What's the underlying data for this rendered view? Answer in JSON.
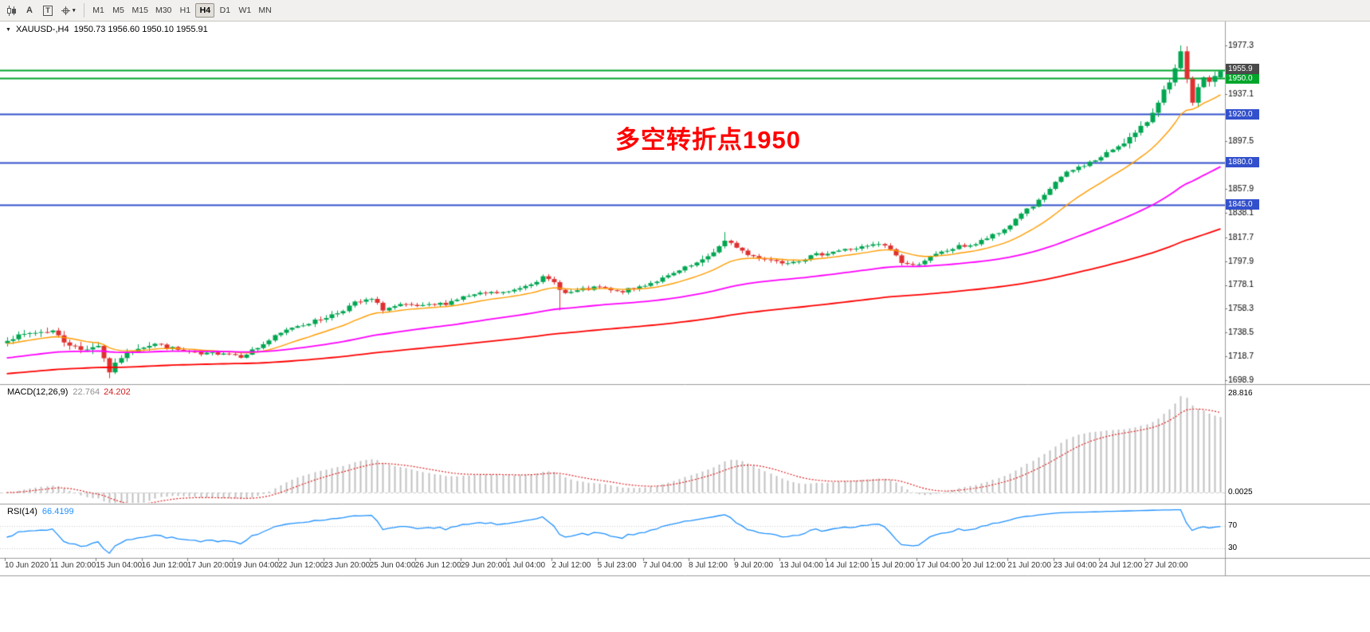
{
  "toolbar": {
    "text_tool_label": "A",
    "textbox_tool_label": "T",
    "timeframes": [
      {
        "label": "M1",
        "active": false
      },
      {
        "label": "M5",
        "active": false
      },
      {
        "label": "M15",
        "active": false
      },
      {
        "label": "M30",
        "active": false
      },
      {
        "label": "H1",
        "active": false
      },
      {
        "label": "H4",
        "active": true
      },
      {
        "label": "D1",
        "active": false
      },
      {
        "label": "W1",
        "active": false
      },
      {
        "label": "MN",
        "active": false
      }
    ]
  },
  "icons": {
    "collapse_triangle": "▼",
    "dropdown_caret": "▾"
  },
  "chart_data": {
    "type": "candlestick",
    "symbol": "XAUUSD-",
    "timeframe": "H4",
    "title_symbol": "XAUUSD-,H4",
    "title_ohlc": "1950.73 1956.60 1950.10 1955.91",
    "ohlc_current": {
      "open": 1950.73,
      "high": 1956.6,
      "low": 1950.1,
      "close": 1955.91
    },
    "annotation": {
      "text": "多空转折点1950",
      "color": "#FF0000"
    },
    "candle_count": 214,
    "candle_colors": {
      "up": "#00A651",
      "down": "#E03030"
    },
    "price_path": [
      [
        0,
        1733
      ],
      [
        4,
        1738
      ],
      [
        8,
        1740
      ],
      [
        10,
        1731
      ],
      [
        13,
        1724
      ],
      [
        16,
        1728
      ],
      [
        18,
        1706
      ],
      [
        20,
        1718
      ],
      [
        23,
        1726
      ],
      [
        26,
        1729
      ],
      [
        30,
        1724
      ],
      [
        34,
        1720
      ],
      [
        38,
        1722
      ],
      [
        41,
        1719
      ],
      [
        44,
        1726
      ],
      [
        47,
        1735
      ],
      [
        50,
        1743
      ],
      [
        54,
        1748
      ],
      [
        58,
        1755
      ],
      [
        61,
        1763
      ],
      [
        64,
        1766
      ],
      [
        66,
        1758
      ],
      [
        69,
        1761
      ],
      [
        73,
        1760
      ],
      [
        77,
        1763
      ],
      [
        80,
        1768
      ],
      [
        84,
        1771
      ],
      [
        88,
        1772
      ],
      [
        91,
        1778
      ],
      [
        94,
        1784
      ],
      [
        96,
        1780
      ],
      [
        98,
        1771
      ],
      [
        101,
        1774
      ],
      [
        104,
        1776
      ],
      [
        107,
        1772
      ],
      [
        110,
        1775
      ],
      [
        113,
        1780
      ],
      [
        116,
        1785
      ],
      [
        119,
        1792
      ],
      [
        122,
        1798
      ],
      [
        124,
        1806
      ],
      [
        126,
        1814
      ],
      [
        128,
        1810
      ],
      [
        130,
        1803
      ],
      [
        133,
        1800
      ],
      [
        136,
        1797
      ],
      [
        139,
        1799
      ],
      [
        142,
        1803
      ],
      [
        145,
        1806
      ],
      [
        148,
        1808
      ],
      [
        151,
        1810
      ],
      [
        153,
        1812
      ],
      [
        155,
        1808
      ],
      [
        157,
        1797
      ],
      [
        159,
        1794
      ],
      [
        161,
        1799
      ],
      [
        164,
        1805
      ],
      [
        167,
        1810
      ],
      [
        170,
        1812
      ],
      [
        172,
        1817
      ],
      [
        174,
        1821
      ],
      [
        176,
        1828
      ],
      [
        178,
        1838
      ],
      [
        180,
        1843
      ],
      [
        182,
        1852
      ],
      [
        184,
        1864
      ],
      [
        186,
        1871
      ],
      [
        188,
        1876
      ],
      [
        190,
        1880
      ],
      [
        192,
        1884
      ],
      [
        194,
        1891
      ],
      [
        196,
        1897
      ],
      [
        198,
        1904
      ],
      [
        200,
        1914
      ],
      [
        201,
        1922
      ],
      [
        202,
        1931
      ],
      [
        203,
        1940
      ],
      [
        204,
        1946
      ],
      [
        205,
        1958
      ],
      [
        206,
        1972
      ],
      [
        207,
        1949
      ],
      [
        208,
        1930
      ],
      [
        209,
        1942
      ],
      [
        210,
        1951
      ],
      [
        211,
        1947
      ],
      [
        212,
        1952
      ],
      [
        213,
        1955.91
      ]
    ],
    "special_wicks": {
      "18": {
        "low": 1700.5
      },
      "97": {
        "low": 1757
      },
      "126": {
        "high": 1822
      },
      "206": {
        "high": 1977.3
      }
    },
    "y_ticks": [
      1977.3,
      1937.1,
      1897.5,
      1857.9,
      1838.1,
      1817.7,
      1797.9,
      1778.1,
      1758.3,
      1738.5,
      1718.7,
      1698.9
    ],
    "horizontal_lines": [
      {
        "price": 1956.6,
        "color": "#00A62C",
        "tag": null
      },
      {
        "price": 1950.0,
        "color": "#00A62C",
        "tag": "1950.0"
      },
      {
        "price": 1920.0,
        "color": "#3350CC",
        "tag": "1920.0"
      },
      {
        "price": 1880.0,
        "color": "#3350CC",
        "tag": "1880.0"
      },
      {
        "price": 1845.0,
        "color": "#3350CC",
        "tag": "1845.0"
      }
    ],
    "bid_tag": {
      "label": "1955.9",
      "price": 1955.91,
      "bg": "#4A4A4A"
    },
    "moving_averages": [
      {
        "name": "fast",
        "period": 16,
        "color": "#FF9C00",
        "width": 1.4,
        "init": 1729
      },
      {
        "name": "medium",
        "period": 65,
        "color": "#FF00FF",
        "width": 1.8,
        "init": 1717
      },
      {
        "name": "slow",
        "period": 160,
        "color": "#FF0000",
        "width": 1.8,
        "init": 1704
      }
    ],
    "indicators": {
      "macd": {
        "label": "MACD(12,26,9)",
        "value_main": "22.764",
        "value_signal": "24.202",
        "fast": 12,
        "slow": 26,
        "signal": 9,
        "hist_color": "#C0C0C0",
        "signal_color": "#E02020",
        "axis_top": "28.816",
        "axis_bottom": "0.0025"
      },
      "rsi": {
        "label": "RSI(14)",
        "value": "66.4199",
        "period": 14,
        "color": "#1E90FF",
        "levels": [
          70,
          30
        ]
      }
    },
    "time_labels": [
      {
        "idx": 0,
        "label": "10 Jun 2020"
      },
      {
        "idx": 8,
        "label": "11 Jun 20:00"
      },
      {
        "idx": 16,
        "label": "15 Jun 04:00"
      },
      {
        "idx": 24,
        "label": "16 Jun 12:00"
      },
      {
        "idx": 32,
        "label": "17 Jun 20:00"
      },
      {
        "idx": 40,
        "label": "19 Jun 04:00"
      },
      {
        "idx": 48,
        "label": "22 Jun 12:00"
      },
      {
        "idx": 56,
        "label": "23 Jun 20:00"
      },
      {
        "idx": 64,
        "label": "25 Jun 04:00"
      },
      {
        "idx": 72,
        "label": "26 Jun 12:00"
      },
      {
        "idx": 80,
        "label": "29 Jun 20:00"
      },
      {
        "idx": 88,
        "label": "1 Jul 04:00"
      },
      {
        "idx": 96,
        "label": "2 Jul 12:00"
      },
      {
        "idx": 104,
        "label": "5 Jul 23:00"
      },
      {
        "idx": 112,
        "label": "7 Jul 04:00"
      },
      {
        "idx": 120,
        "label": "8 Jul 12:00"
      },
      {
        "idx": 128,
        "label": "9 Jul 20:00"
      },
      {
        "idx": 136,
        "label": "13 Jul 04:00"
      },
      {
        "idx": 144,
        "label": "14 Jul 12:00"
      },
      {
        "idx": 152,
        "label": "15 Jul 20:00"
      },
      {
        "idx": 160,
        "label": "17 Jul 04:00"
      },
      {
        "idx": 168,
        "label": "20 Jul 12:00"
      },
      {
        "idx": 176,
        "label": "21 Jul 20:00"
      },
      {
        "idx": 184,
        "label": "23 Jul 04:00"
      },
      {
        "idx": 192,
        "label": "24 Jul 12:00"
      },
      {
        "idx": 200,
        "label": "27 Jul 20:00"
      }
    ]
  }
}
